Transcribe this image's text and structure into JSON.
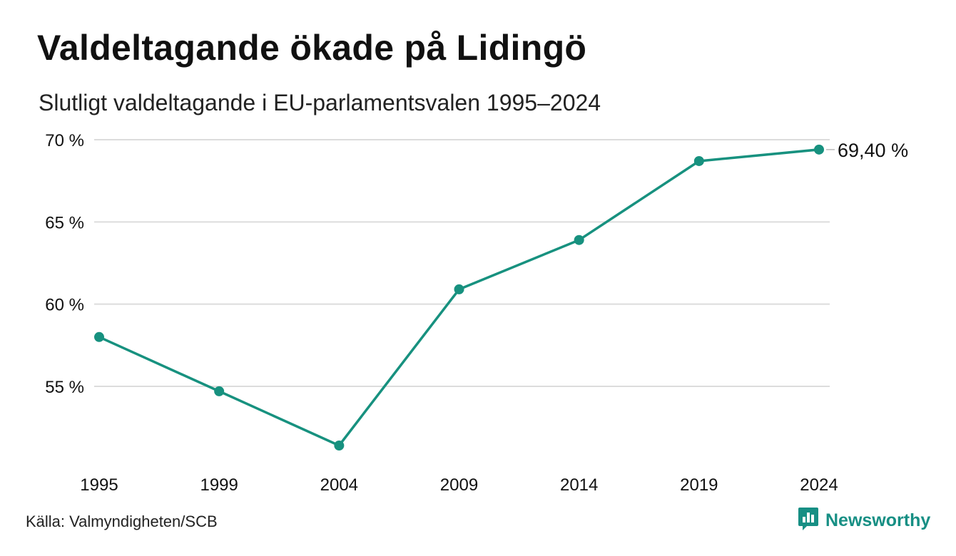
{
  "header": {
    "title": "Valdeltagande ökade på Lidingö",
    "subtitle": "Slutligt valdeltagande i EU-parlamentsvalen 1995–2024"
  },
  "footer": {
    "source": "Källa: Valmyndigheten/SCB",
    "brand": "Newsworthy",
    "brand_icon": "newsworthy-logo-icon"
  },
  "colors": {
    "line": "#17917f",
    "grid": "#dcdcdc",
    "brand": "#178f84"
  },
  "chart_data": {
    "type": "line",
    "title": "",
    "xlabel": "",
    "ylabel": "",
    "categories": [
      "1995",
      "1999",
      "2004",
      "2009",
      "2014",
      "2019",
      "2024"
    ],
    "series": [
      {
        "values": [
          58.0,
          54.7,
          51.4,
          60.9,
          63.9,
          68.7,
          69.4
        ]
      }
    ],
    "ylim": [
      50,
      70
    ],
    "yticks": [
      {
        "value": 55,
        "label": "55 %"
      },
      {
        "value": 60,
        "label": "60 %"
      },
      {
        "value": 65,
        "label": "65 %"
      },
      {
        "value": 70,
        "label": "70 %"
      }
    ],
    "grid": true,
    "last_value_label": "69,40 %"
  }
}
